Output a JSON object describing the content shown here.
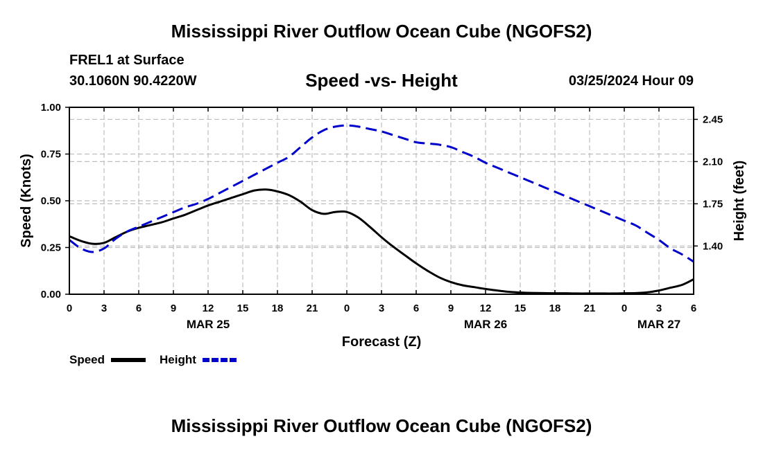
{
  "header": {
    "title": "Mississippi River Outflow Ocean Cube (NGOFS2)",
    "station": "FREL1 at Surface",
    "coords": "30.1060N  90.4220W",
    "subtitle": "Speed -vs- Height",
    "datetime": "03/25/2024 Hour 09"
  },
  "footer": {
    "title": "Mississippi River Outflow Ocean Cube (NGOFS2)"
  },
  "chart_data": {
    "type": "line",
    "title": "Speed -vs- Height",
    "xlabel": "Forecast (Z)",
    "ylabel": "Speed (Knots)",
    "y2label": "Height (feet)",
    "x_unit": "forecast hours from 00Z MAR 25",
    "xlim": [
      0,
      54
    ],
    "ylim": [
      0,
      1.0
    ],
    "y2lim": [
      1.0,
      2.55
    ],
    "x_ticks": [
      0,
      3,
      6,
      9,
      12,
      15,
      18,
      21,
      24,
      27,
      30,
      33,
      36,
      39,
      42,
      45,
      48,
      51,
      54
    ],
    "x_tick_labels": [
      "0",
      "3",
      "6",
      "9",
      "12",
      "15",
      "18",
      "21",
      "0",
      "3",
      "6",
      "9",
      "12",
      "15",
      "18",
      "21",
      "0",
      "3",
      "6"
    ],
    "date_labels": [
      {
        "x": 12,
        "label": "MAR 25"
      },
      {
        "x": 36,
        "label": "MAR 26"
      },
      {
        "x": 51,
        "label": "MAR 27"
      }
    ],
    "y_ticks": [
      0,
      0.25,
      0.5,
      0.75,
      1.0
    ],
    "y_tick_labels": [
      "0.00",
      "0.25",
      "0.50",
      "0.75",
      "1.00"
    ],
    "y2_ticks": [
      1.4,
      1.75,
      2.1,
      2.45
    ],
    "y2_tick_labels": [
      "1.40",
      "1.75",
      "2.10",
      "2.45"
    ],
    "series": [
      {
        "name": "Speed",
        "axis": "left",
        "color": "#000000",
        "dash": "solid",
        "x": [
          0,
          1,
          2,
          3,
          4,
          5,
          6,
          7,
          8,
          9,
          10,
          11,
          12,
          13,
          14,
          15,
          16,
          17,
          18,
          19,
          20,
          21,
          22,
          23,
          24,
          25,
          26,
          27,
          28,
          29,
          30,
          31,
          32,
          33,
          34,
          35,
          36,
          37,
          38,
          39,
          40,
          41,
          42,
          43,
          44,
          45,
          46,
          47,
          48,
          49,
          50,
          51,
          52,
          53,
          54
        ],
        "values": [
          0.31,
          0.285,
          0.27,
          0.275,
          0.305,
          0.335,
          0.355,
          0.37,
          0.385,
          0.405,
          0.425,
          0.45,
          0.475,
          0.495,
          0.515,
          0.535,
          0.555,
          0.56,
          0.55,
          0.53,
          0.495,
          0.45,
          0.43,
          0.44,
          0.44,
          0.41,
          0.36,
          0.305,
          0.255,
          0.21,
          0.165,
          0.125,
          0.09,
          0.065,
          0.048,
          0.038,
          0.028,
          0.02,
          0.013,
          0.009,
          0.007,
          0.006,
          0.005,
          0.005,
          0.004,
          0.004,
          0.004,
          0.004,
          0.005,
          0.006,
          0.01,
          0.02,
          0.035,
          0.05,
          0.08
        ]
      },
      {
        "name": "Height",
        "axis": "right",
        "color": "#0000cc",
        "dash": "dashed",
        "x": [
          0,
          1,
          2,
          3,
          4,
          5,
          6,
          7,
          8,
          9,
          10,
          11,
          12,
          13,
          14,
          15,
          16,
          17,
          18,
          19,
          20,
          21,
          22,
          23,
          24,
          25,
          26,
          27,
          28,
          29,
          30,
          31,
          32,
          33,
          34,
          35,
          36,
          37,
          38,
          39,
          40,
          41,
          42,
          43,
          44,
          45,
          46,
          47,
          48,
          49,
          50,
          51,
          52,
          53,
          54
        ],
        "values": [
          1.45,
          1.38,
          1.35,
          1.38,
          1.46,
          1.52,
          1.56,
          1.6,
          1.64,
          1.68,
          1.72,
          1.75,
          1.79,
          1.84,
          1.89,
          1.94,
          1.99,
          2.04,
          2.09,
          2.14,
          2.22,
          2.3,
          2.36,
          2.39,
          2.4,
          2.39,
          2.37,
          2.35,
          2.32,
          2.29,
          2.26,
          2.25,
          2.24,
          2.22,
          2.18,
          2.14,
          2.09,
          2.05,
          2.01,
          1.97,
          1.93,
          1.89,
          1.85,
          1.81,
          1.77,
          1.73,
          1.69,
          1.65,
          1.61,
          1.57,
          1.51,
          1.45,
          1.38,
          1.33,
          1.27
        ]
      }
    ],
    "legend": [
      {
        "label": "Speed",
        "color": "#000000",
        "dash": "solid"
      },
      {
        "label": "Height",
        "color": "#0000cc",
        "dash": "dashed"
      }
    ]
  }
}
